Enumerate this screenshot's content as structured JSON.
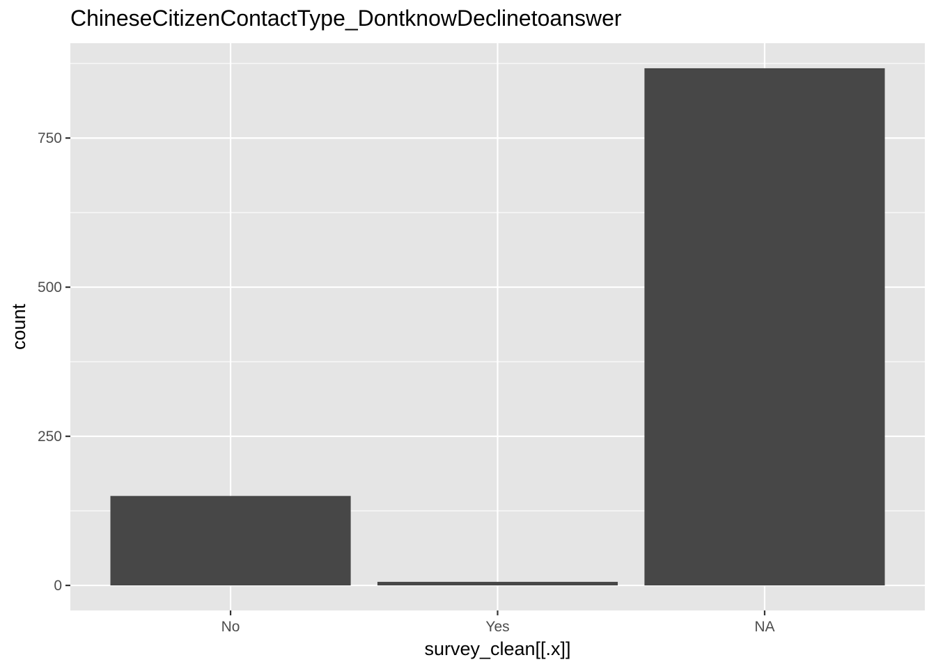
{
  "chart_data": {
    "type": "bar",
    "title": "ChineseCitizenContactType_DontknowDeclinetoanswer",
    "xlabel": "survey_clean[[.x]]",
    "ylabel": "count",
    "categories": [
      "No",
      "Yes",
      "NA"
    ],
    "values": [
      150,
      6,
      867
    ],
    "ylim": [
      -42,
      909
    ],
    "yticks": [
      0,
      250,
      500,
      750
    ],
    "grid": true,
    "colors": {
      "panel": "#e5e5e5",
      "grid": "#ffffff",
      "bar": "#474747",
      "tick": "#333333",
      "tick_label": "#4d4d4d"
    }
  }
}
